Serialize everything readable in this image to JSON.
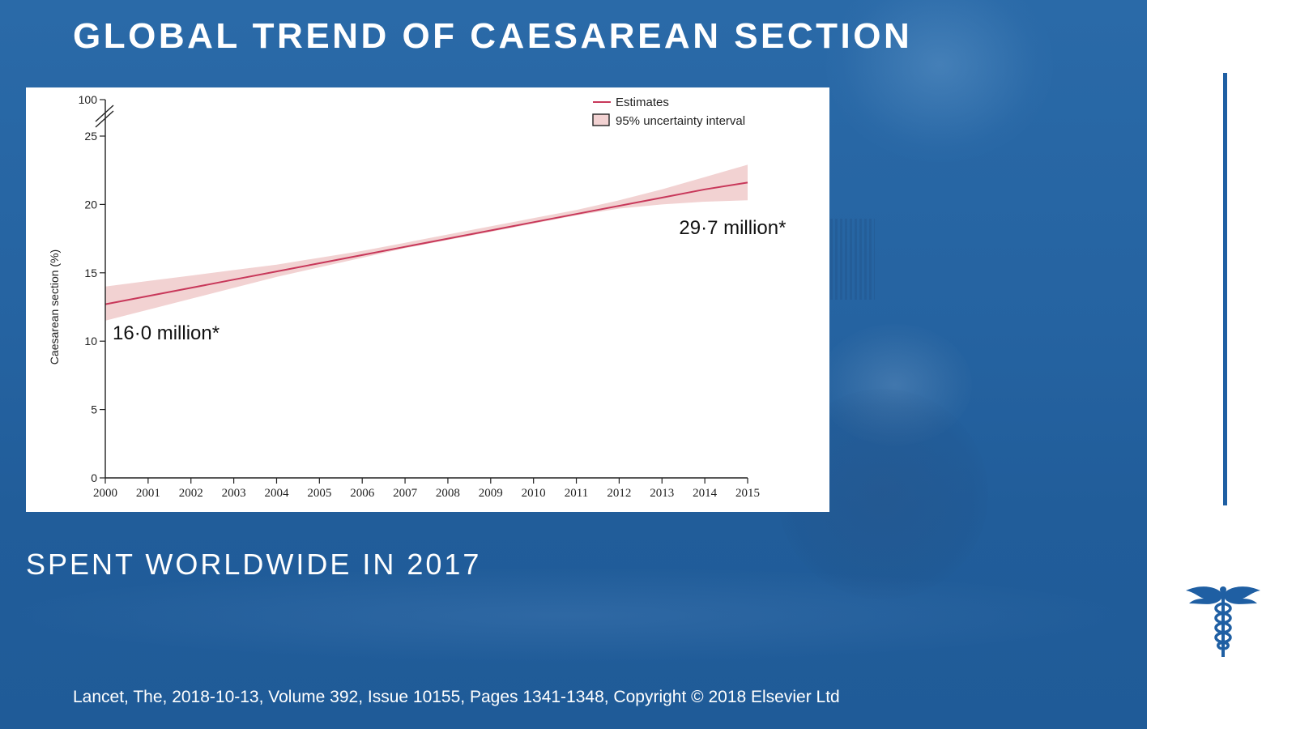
{
  "slide": {
    "title": "GLOBAL TREND OF CAESAREAN SECTION",
    "subtitle": "SPENT WORLDWIDE IN 2017",
    "citation": "Lancet, The, 2018-10-13, Volume 392, Issue 10155, Pages 1341-1348, Copyright © 2018 Elsevier Ltd",
    "accent_color": "#1f5fa3",
    "icon": "caduceus-icon"
  },
  "chart_data": {
    "type": "line",
    "title": "",
    "xlabel": "",
    "ylabel": "Caesarean section (%)",
    "x": [
      2000,
      2001,
      2002,
      2003,
      2004,
      2005,
      2006,
      2007,
      2008,
      2009,
      2010,
      2011,
      2012,
      2013,
      2014,
      2015
    ],
    "xticks": [
      "2000",
      "2001",
      "2002",
      "2003",
      "2004",
      "2005",
      "2006",
      "2007",
      "2008",
      "2009",
      "2010",
      "2011",
      "2012",
      "2013",
      "2014",
      "2015"
    ],
    "yticks": [
      "0",
      "5",
      "10",
      "15",
      "20",
      "25",
      "100"
    ],
    "ylim": [
      0,
      25
    ],
    "axis_break": {
      "from": 25,
      "to": 100
    },
    "grid": false,
    "legend_position": "top-right",
    "series": [
      {
        "name": "Estimates",
        "color": "#c8385a",
        "values": [
          12.7,
          13.3,
          13.9,
          14.5,
          15.1,
          15.7,
          16.3,
          16.9,
          17.5,
          18.1,
          18.7,
          19.3,
          19.9,
          20.5,
          21.1,
          21.6
        ]
      }
    ],
    "interval": {
      "name": "95% uncertainty interval",
      "color": "#f2d2d2",
      "lower": [
        11.5,
        12.3,
        13.1,
        13.9,
        14.7,
        15.4,
        16.1,
        16.8,
        17.4,
        18.0,
        18.6,
        19.2,
        19.7,
        20.0,
        20.2,
        20.3
      ],
      "upper": [
        14.0,
        14.4,
        14.8,
        15.2,
        15.6,
        16.1,
        16.6,
        17.2,
        17.8,
        18.4,
        19.0,
        19.6,
        20.3,
        21.1,
        22.0,
        22.9
      ]
    },
    "annotations": [
      {
        "text": "16·0 million*",
        "x": 2000,
        "y": 10.5
      },
      {
        "text": "29·7 million*",
        "x": 2013.4,
        "y": 18.2
      }
    ]
  }
}
